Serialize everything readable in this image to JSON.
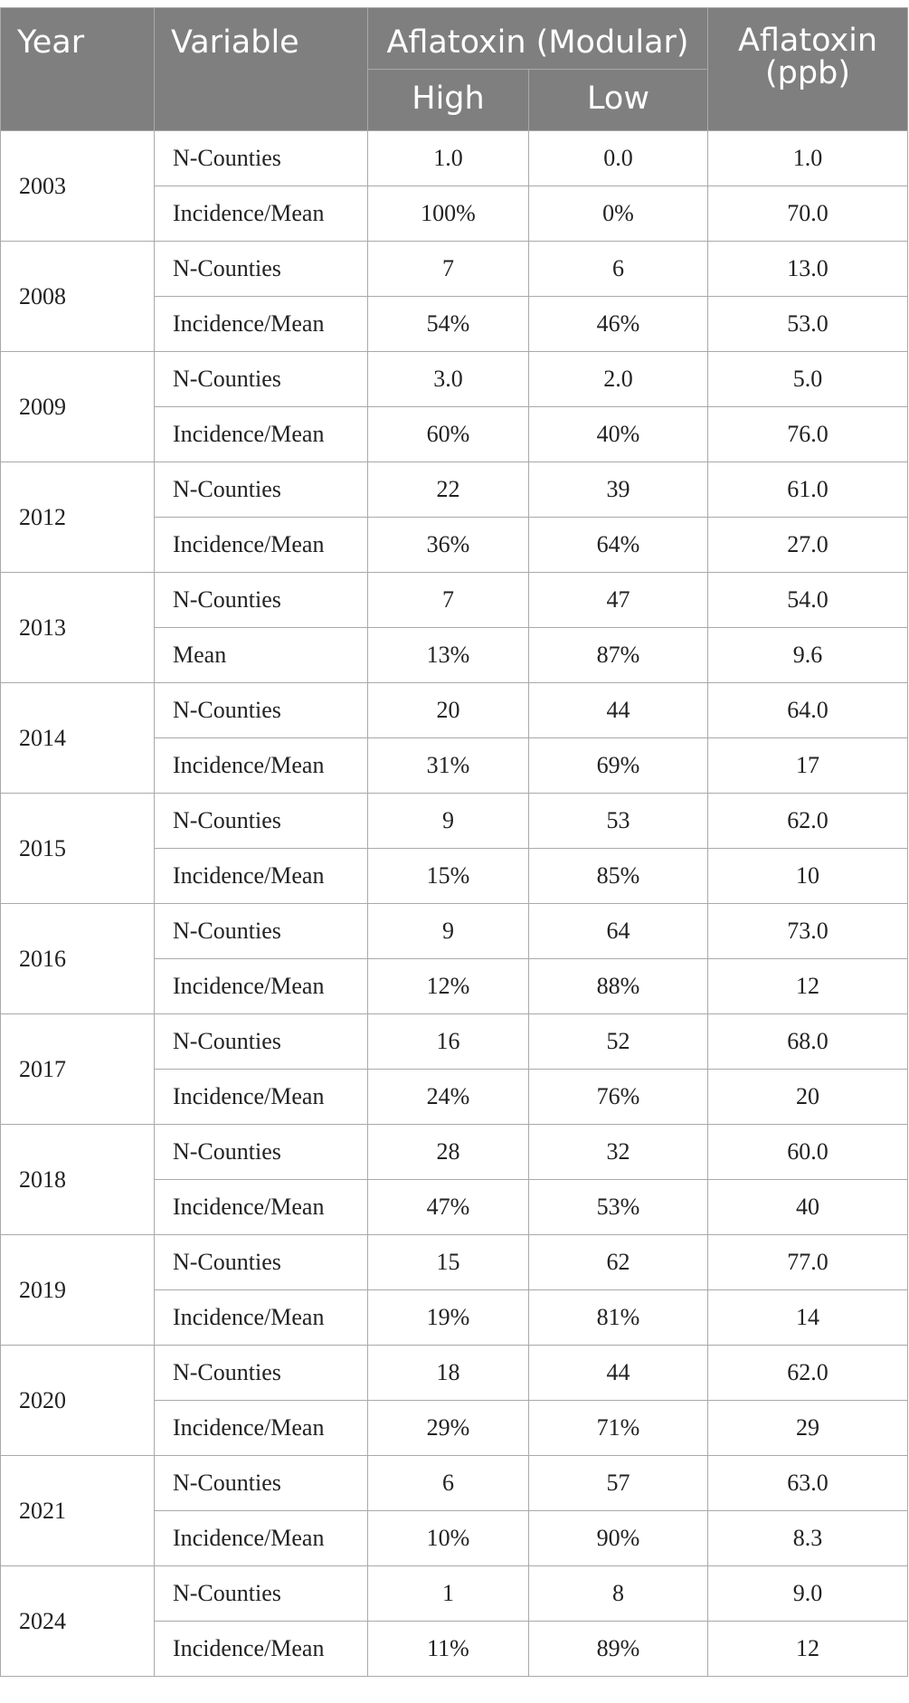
{
  "table": {
    "headers": {
      "year": "Year",
      "variable": "Variable",
      "modular": "Aflatoxin (Modular)",
      "high": "High",
      "low": "Low",
      "ppb": "Aflatoxin (ppb)"
    },
    "groups": [
      {
        "year": "2003",
        "rows": [
          {
            "variable": "N-Counties",
            "high": "1.0",
            "low": "0.0",
            "ppb": "1.0"
          },
          {
            "variable": "Incidence/Mean",
            "high": "100%",
            "low": "0%",
            "ppb": "70.0"
          }
        ]
      },
      {
        "year": "2008",
        "rows": [
          {
            "variable": "N-Counties",
            "high": "7",
            "low": "6",
            "ppb": "13.0"
          },
          {
            "variable": "Incidence/Mean",
            "high": "54%",
            "low": "46%",
            "ppb": "53.0"
          }
        ]
      },
      {
        "year": "2009",
        "rows": [
          {
            "variable": "N-Counties",
            "high": "3.0",
            "low": "2.0",
            "ppb": "5.0"
          },
          {
            "variable": "Incidence/Mean",
            "high": "60%",
            "low": "40%",
            "ppb": "76.0"
          }
        ]
      },
      {
        "year": "2012",
        "rows": [
          {
            "variable": "N-Counties",
            "high": "22",
            "low": "39",
            "ppb": "61.0"
          },
          {
            "variable": "Incidence/Mean",
            "high": "36%",
            "low": "64%",
            "ppb": "27.0"
          }
        ]
      },
      {
        "year": "2013",
        "rows": [
          {
            "variable": "N-Counties",
            "high": "7",
            "low": "47",
            "ppb": "54.0"
          },
          {
            "variable": "Mean",
            "high": "13%",
            "low": "87%",
            "ppb": "9.6"
          }
        ]
      },
      {
        "year": "2014",
        "rows": [
          {
            "variable": "N-Counties",
            "high": "20",
            "low": "44",
            "ppb": "64.0"
          },
          {
            "variable": "Incidence/Mean",
            "high": "31%",
            "low": "69%",
            "ppb": "17"
          }
        ]
      },
      {
        "year": "2015",
        "rows": [
          {
            "variable": "N-Counties",
            "high": "9",
            "low": "53",
            "ppb": "62.0"
          },
          {
            "variable": "Incidence/Mean",
            "high": "15%",
            "low": "85%",
            "ppb": "10"
          }
        ]
      },
      {
        "year": "2016",
        "rows": [
          {
            "variable": "N-Counties",
            "high": "9",
            "low": "64",
            "ppb": "73.0"
          },
          {
            "variable": "Incidence/Mean",
            "high": "12%",
            "low": "88%",
            "ppb": "12"
          }
        ]
      },
      {
        "year": "2017",
        "rows": [
          {
            "variable": "N-Counties",
            "high": "16",
            "low": "52",
            "ppb": "68.0"
          },
          {
            "variable": "Incidence/Mean",
            "high": "24%",
            "low": "76%",
            "ppb": "20"
          }
        ]
      },
      {
        "year": "2018",
        "rows": [
          {
            "variable": "N-Counties",
            "high": "28",
            "low": "32",
            "ppb": "60.0"
          },
          {
            "variable": "Incidence/Mean",
            "high": "47%",
            "low": "53%",
            "ppb": "40"
          }
        ]
      },
      {
        "year": "2019",
        "rows": [
          {
            "variable": "N-Counties",
            "high": "15",
            "low": "62",
            "ppb": "77.0"
          },
          {
            "variable": "Incidence/Mean",
            "high": "19%",
            "low": "81%",
            "ppb": "14"
          }
        ]
      },
      {
        "year": "2020",
        "rows": [
          {
            "variable": "N-Counties",
            "high": "18",
            "low": "44",
            "ppb": "62.0"
          },
          {
            "variable": "Incidence/Mean",
            "high": "29%",
            "low": "71%",
            "ppb": "29"
          }
        ]
      },
      {
        "year": "2021",
        "rows": [
          {
            "variable": "N-Counties",
            "high": "6",
            "low": "57",
            "ppb": "63.0"
          },
          {
            "variable": "Incidence/Mean",
            "high": "10%",
            "low": "90%",
            "ppb": "8.3"
          }
        ]
      },
      {
        "year": "2024",
        "rows": [
          {
            "variable": "N-Counties",
            "high": "1",
            "low": "8",
            "ppb": "9.0"
          },
          {
            "variable": "Incidence/Mean",
            "high": "11%",
            "low": "89%",
            "ppb": "12"
          }
        ]
      }
    ]
  }
}
